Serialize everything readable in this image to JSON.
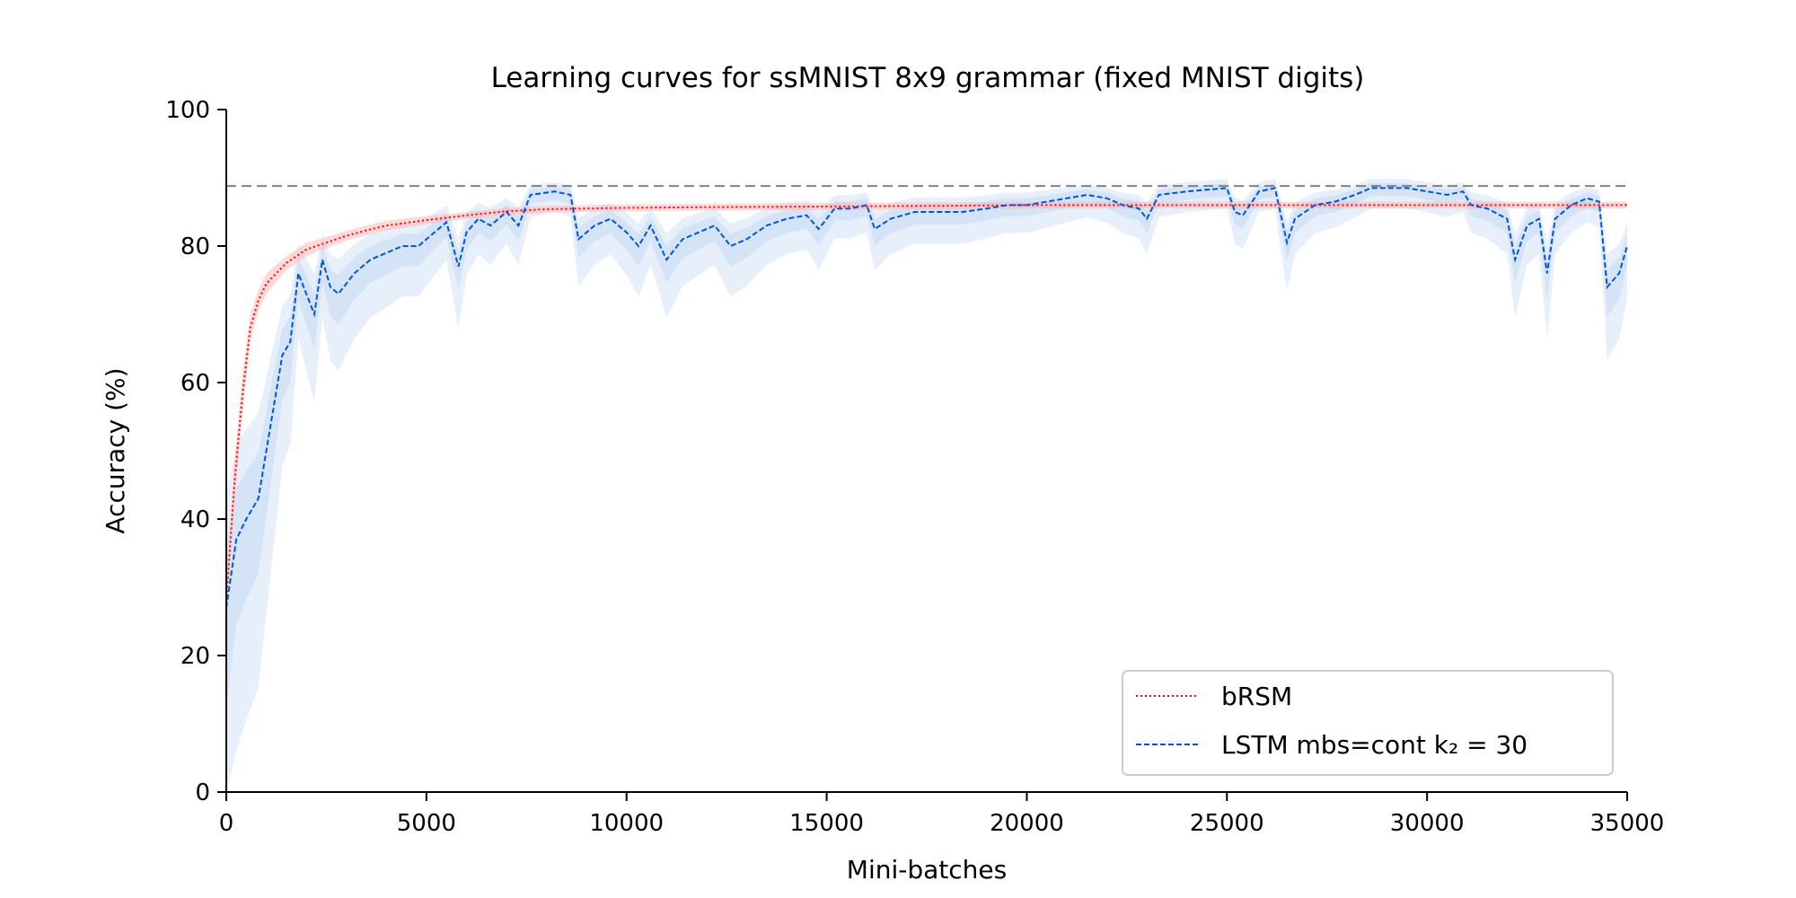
{
  "chart_data": {
    "type": "line",
    "title": "Learning curves for ssMNIST 8x9 grammar (fixed MNIST digits)",
    "xlabel": "Mini-batches",
    "ylabel": "Accuracy (%)",
    "xlim": [
      0,
      35000
    ],
    "ylim": [
      0,
      100
    ],
    "xticks": [
      "0",
      "5000",
      "10000",
      "15000",
      "20000",
      "25000",
      "30000",
      "35000"
    ],
    "yticks": [
      "0",
      "20",
      "40",
      "60",
      "80",
      "100"
    ],
    "reference_line": {
      "y": 88.8,
      "style": "dashed",
      "color": "#808080"
    },
    "legend_position": "bottom-right",
    "series": [
      {
        "name": "bRSM",
        "color": "#ff0000",
        "style": "dotted",
        "x": [
          0,
          200,
          400,
          600,
          800,
          1000,
          1500,
          2000,
          2500,
          3000,
          3500,
          4000,
          5000,
          6000,
          7000,
          8000,
          9000,
          10000,
          12000,
          15000,
          18000,
          20000,
          25000,
          30000,
          35000
        ],
        "values": [
          28,
          45,
          58,
          68,
          72,
          74.5,
          77.5,
          79.5,
          80.5,
          81.5,
          82.3,
          83,
          83.8,
          84.5,
          85.1,
          85.4,
          85.5,
          85.6,
          85.7,
          85.8,
          85.9,
          86.0,
          86.0,
          86.0,
          86.0
        ],
        "band_lower": [
          26,
          42,
          55,
          66,
          70.5,
          73,
          76.5,
          78.5,
          79.7,
          80.8,
          81.6,
          82.3,
          83.2,
          84,
          84.6,
          84.9,
          85,
          85.1,
          85.2,
          85.3,
          85.4,
          85.5,
          85.5,
          85.5,
          85.5
        ],
        "band_upper": [
          30,
          48,
          61,
          70,
          73.5,
          76,
          78.5,
          80.5,
          81.3,
          82.2,
          83,
          83.7,
          84.4,
          85,
          85.6,
          85.9,
          86,
          86.1,
          86.2,
          86.3,
          86.4,
          86.5,
          86.5,
          86.5,
          86.5
        ]
      },
      {
        "name": "LSTM mbs=cont k₂ = 30",
        "color": "#0055d4",
        "style": "dashed",
        "band_color": "#c9dbf5",
        "x": [
          0,
          250,
          500,
          800,
          1000,
          1200,
          1400,
          1600,
          1800,
          2000,
          2200,
          2400,
          2600,
          2800,
          3200,
          3600,
          4000,
          4400,
          4800,
          5200,
          5500,
          5800,
          6000,
          6300,
          6600,
          7000,
          7300,
          7600,
          8200,
          8600,
          8800,
          9200,
          9600,
          10000,
          10300,
          10600,
          11000,
          11400,
          11800,
          12200,
          12600,
          13000,
          13500,
          14000,
          14500,
          14800,
          15200,
          15600,
          16000,
          16200,
          16600,
          17200,
          17800,
          18400,
          19000,
          19500,
          20000,
          20500,
          21000,
          21500,
          22000,
          22400,
          22800,
          23000,
          23300,
          24000,
          25000,
          25200,
          25400,
          25800,
          26200,
          26500,
          26700,
          27200,
          27700,
          28200,
          28600,
          29000,
          29500,
          30000,
          30500,
          30900,
          31100,
          31500,
          32000,
          32200,
          32500,
          32800,
          33000,
          33200,
          33600,
          34000,
          34300,
          34500,
          34800,
          35000
        ],
        "values": [
          27,
          37,
          40,
          43,
          50,
          57,
          64,
          66,
          76,
          73,
          70,
          78,
          74,
          73,
          76,
          78,
          79,
          80,
          80,
          82,
          83.5,
          77,
          82,
          84,
          83,
          85,
          83,
          87.5,
          88,
          87.5,
          81,
          83,
          84,
          82,
          80,
          83,
          78,
          81,
          82,
          83,
          80,
          81,
          83,
          84,
          84.5,
          82.5,
          85.5,
          85.5,
          86,
          82.5,
          84,
          85,
          85,
          85,
          85.5,
          86,
          86,
          86.5,
          87,
          87.5,
          87,
          86,
          85.5,
          84,
          87.5,
          88,
          88.5,
          85,
          84.5,
          88,
          88.5,
          80.5,
          84,
          86,
          86.5,
          87.5,
          88.5,
          88.5,
          88.5,
          88,
          87.5,
          88,
          86,
          85.5,
          84,
          78,
          83,
          84,
          76,
          84,
          86,
          87,
          86.5,
          74,
          76,
          80
        ]
      }
    ]
  }
}
